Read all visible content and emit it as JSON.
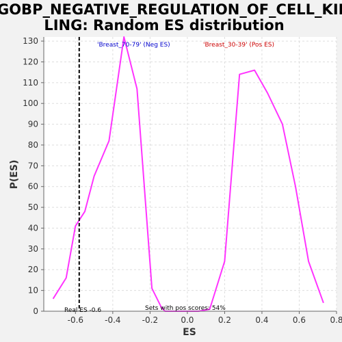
{
  "chart_data": {
    "type": "line",
    "title": "GOBP_NEGATIVE_REGULATION_OF_CELL_KILLING: Random ES distribution",
    "title_lines": [
      "GOBP_NEGATIVE_REGULATION_OF_CELL_KIL",
      "LING: Random ES distribution"
    ],
    "xlabel": "ES",
    "ylabel": "P(ES)",
    "xlim": [
      -0.77,
      0.8
    ],
    "ylim": [
      0,
      132
    ],
    "grid": true,
    "x_ticks": [
      -0.6,
      -0.4,
      -0.2,
      0.0,
      0.2,
      0.4,
      0.6,
      0.8
    ],
    "x_tick_labels": [
      "-0.6",
      "-0.4",
      "-0.2",
      "0.0",
      "0.2",
      "0.4",
      "0.6",
      "0.8"
    ],
    "y_ticks": [
      0,
      10,
      20,
      30,
      40,
      50,
      60,
      70,
      80,
      90,
      100,
      110,
      120,
      130
    ],
    "series": [
      {
        "color": "#ff33ff",
        "x": [
          -0.72,
          -0.65,
          -0.6,
          -0.55,
          -0.5,
          -0.42,
          -0.34,
          -0.27,
          -0.19,
          -0.14,
          -0.12,
          0.06,
          0.12,
          0.2,
          0.28,
          0.36,
          0.43,
          0.51,
          0.58,
          0.65,
          0.73
        ],
        "y": [
          6,
          16,
          41,
          48,
          65,
          82,
          132,
          107,
          11,
          2,
          0,
          0,
          1,
          24,
          114,
          116,
          105,
          90,
          60,
          24,
          4
        ]
      }
    ],
    "real_es_line": {
      "x": -0.58,
      "color": "#000000",
      "style": "dashed"
    },
    "annotations": {
      "neg_label": {
        "text": "'Breast_70-79' (Neg ES)",
        "color": "#0000cc"
      },
      "pos_label": {
        "text": "'Breast_30-39' (Pos ES)",
        "color": "#cc0000"
      },
      "real_es_label": {
        "text": "Real ES -0.6",
        "color": "#000000"
      },
      "pos_scores_label": {
        "text": "Sets with pos scores: 54%",
        "color": "#000000"
      }
    }
  }
}
